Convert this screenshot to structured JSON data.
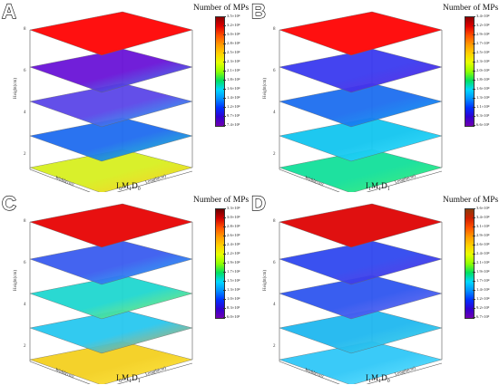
{
  "panels": [
    {
      "letter": "A",
      "caption": "I₀M₁D₀",
      "colorbar": {
        "title": "Number of MPs",
        "ticks": [
          "3.5×10⁴",
          "3.2×10⁴",
          "3.0×10⁴",
          "2.8×10⁴",
          "2.5×10⁴",
          "2.3×10⁴",
          "2.1×10⁴",
          "1.8×10⁴",
          "1.6×10⁴",
          "1.4×10⁴",
          "1.2×10⁴",
          "9.7×10³",
          "7.4×10³"
        ],
        "colors": [
          "#8b0000",
          "#e00000",
          "#ff5000",
          "#ff9900",
          "#ffd000",
          "#e6ff00",
          "#90ff00",
          "#00e060",
          "#00d8ff",
          "#0090ff",
          "#0030ff",
          "#3000d0",
          "#7000b0"
        ]
      },
      "layers": [
        "#ff1010",
        "#6a14d8",
        "#5b46e8",
        "#1f6cf0",
        "#d8f020"
      ],
      "highlights": [
        null,
        "#2a9ef0",
        "#12c8f2",
        "#18d6c0",
        "#ffc41a"
      ]
    },
    {
      "letter": "B",
      "caption": "I₁M₁D₁",
      "colorbar": {
        "title": "Number of MPs",
        "ticks": [
          "3.4×10⁴",
          "3.2×10⁴",
          "2.9×10⁴",
          "2.7×10⁴",
          "2.5×10⁴",
          "2.3×10⁴",
          "2.0×10⁴",
          "1.8×10⁴",
          "1.6×10⁴",
          "1.3×10⁴",
          "1.1×10⁴",
          "9.3×10³",
          "6.6×10³"
        ],
        "colors": [
          "#8b0000",
          "#e00000",
          "#ff5000",
          "#ff9900",
          "#ffd000",
          "#e6ff00",
          "#90ff00",
          "#00e060",
          "#00d8ff",
          "#0090ff",
          "#0030ff",
          "#3000d0",
          "#7000b0"
        ]
      },
      "layers": [
        "#ff1010",
        "#3a3af0",
        "#1d6ef0",
        "#13c6f0",
        "#12e09a"
      ],
      "highlights": [
        null,
        "#5a24e0",
        "#0aa6f4",
        "#36e0ff",
        "#40f070"
      ]
    },
    {
      "letter": "C",
      "caption": "I₀M₁D₁",
      "colorbar": {
        "title": "Number of MPs",
        "ticks": [
          "3.3×10⁴",
          "3.0×10⁴",
          "2.8×10⁴",
          "2.6×10⁴",
          "2.4×10⁴",
          "2.2×10⁴",
          "1.9×10⁴",
          "1.7×10⁴",
          "1.5×10⁴",
          "1.3×10⁴",
          "1.0×10⁴",
          "8.3×10³",
          "6.0×10³"
        ],
        "colors": [
          "#6b0000",
          "#d00000",
          "#ff5000",
          "#ff9900",
          "#ffd000",
          "#e6ff00",
          "#90ff00",
          "#00e060",
          "#00d8ff",
          "#0090ff",
          "#0030ff",
          "#3000d0",
          "#7000b0"
        ]
      },
      "layers": [
        "#e81010",
        "#3b5cf0",
        "#1fd8d0",
        "#28c8f0",
        "#f4d020"
      ],
      "highlights": [
        null,
        "#1ec0f4",
        "#a0f040",
        "#f0a020",
        "#ffe840"
      ]
    },
    {
      "letter": "D",
      "caption": "I₁M₁D₀",
      "colorbar": {
        "title": "Number of MPs",
        "ticks": [
          "3.6×10⁴",
          "3.4×10⁴",
          "3.1×10⁴",
          "2.9×10⁴",
          "2.6×10⁴",
          "2.4×10⁴",
          "2.1×10⁴",
          "1.9×10⁴",
          "1.7×10⁴",
          "1.4×10⁴",
          "1.2×10⁴",
          "9.2×10³",
          "6.7×10³"
        ],
        "colors": [
          "#8b3a0a",
          "#d02000",
          "#ff5000",
          "#ff9900",
          "#ffd000",
          "#e6ff00",
          "#90ff00",
          "#00e060",
          "#00d8ff",
          "#0090ff",
          "#0030ff",
          "#3000d0",
          "#7000b0"
        ]
      },
      "layers": [
        "#e01010",
        "#3048f0",
        "#2f56f0",
        "#1fb8f0",
        "#30c8f8"
      ],
      "highlights": [
        null,
        "#5a2ee0",
        "#7a6ef0",
        "#4ad6e8",
        "#6ae6ff"
      ]
    }
  ],
  "axes": {
    "height_label": "Height(cm)",
    "length_label": "Length(cm)",
    "width_label": "Width(cm)",
    "height_ticks": [
      "8",
      "6",
      "4",
      "2"
    ]
  }
}
